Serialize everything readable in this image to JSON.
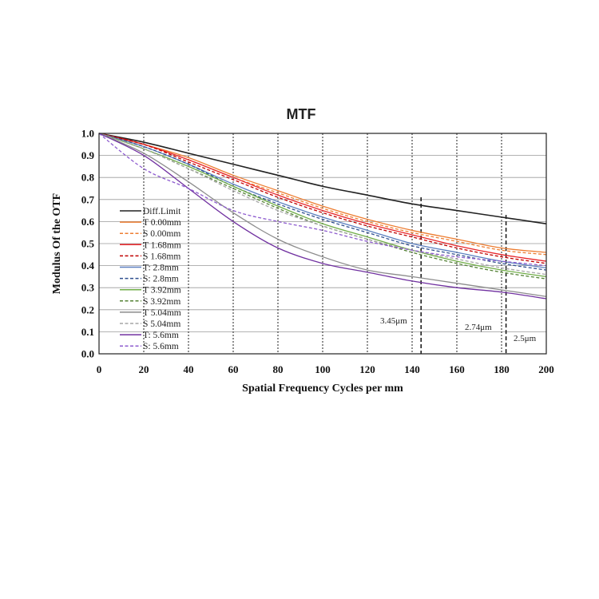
{
  "chart_data": {
    "type": "line",
    "title": "MTF",
    "xlabel": "Spatial Frequency Cycles per mm",
    "ylabel": "Modulus Of  the OTF",
    "xlim": [
      0,
      200
    ],
    "ylim": [
      0,
      1
    ],
    "xticks": [
      0,
      20,
      40,
      60,
      80,
      100,
      120,
      140,
      160,
      180,
      200
    ],
    "xtick_labels": [
      "0",
      "20",
      "40",
      "60",
      "80",
      "100",
      "120",
      "140",
      "160",
      "180",
      "200"
    ],
    "yticks": [
      0,
      0.1,
      0.2,
      0.3,
      0.4,
      0.5,
      0.6,
      0.7,
      0.8,
      0.9,
      1.0
    ],
    "ytick_labels": [
      "0.0",
      "0.1",
      "0.2",
      "0.3",
      "0.4",
      "0.5",
      "0.6",
      "0.7",
      "0.8",
      "0.9",
      "1.0"
    ],
    "grid": "horizontal solid, vertical dotted",
    "legend_position": "left",
    "x": [
      0,
      20,
      40,
      60,
      80,
      100,
      120,
      140,
      160,
      180,
      200
    ],
    "series": [
      {
        "name": "Diff.Limit",
        "color": "#222222",
        "dash": "solid",
        "values": [
          1.0,
          0.96,
          0.91,
          0.86,
          0.81,
          0.76,
          0.72,
          0.68,
          0.65,
          0.62,
          0.59
        ]
      },
      {
        "name": "T 0.00mm",
        "color": "#ed7d31",
        "dash": "solid",
        "values": [
          1.0,
          0.95,
          0.89,
          0.81,
          0.74,
          0.67,
          0.61,
          0.56,
          0.52,
          0.48,
          0.46
        ]
      },
      {
        "name": "S 0.00mm",
        "color": "#ed7d31",
        "dash": "dashed",
        "values": [
          1.0,
          0.95,
          0.88,
          0.8,
          0.73,
          0.66,
          0.6,
          0.55,
          0.51,
          0.47,
          0.45
        ]
      },
      {
        "name": "T 1.68mm",
        "color": "#e8262b",
        "dash": "solid",
        "values": [
          1.0,
          0.95,
          0.88,
          0.8,
          0.72,
          0.65,
          0.59,
          0.54,
          0.49,
          0.45,
          0.42
        ]
      },
      {
        "name": "S 1.68mm",
        "color": "#c00000",
        "dash": "dashed",
        "values": [
          1.0,
          0.95,
          0.87,
          0.79,
          0.71,
          0.64,
          0.58,
          0.53,
          0.48,
          0.44,
          0.41
        ]
      },
      {
        "name": "T: 2.8mm",
        "color": "#5b7fbf",
        "dash": "solid",
        "values": [
          1.0,
          0.94,
          0.86,
          0.77,
          0.69,
          0.62,
          0.56,
          0.5,
          0.46,
          0.42,
          0.39
        ]
      },
      {
        "name": "S: 2.8mm",
        "color": "#2f4f8f",
        "dash": "dashed",
        "values": [
          1.0,
          0.94,
          0.86,
          0.76,
          0.68,
          0.61,
          0.55,
          0.49,
          0.45,
          0.41,
          0.38
        ]
      },
      {
        "name": "T 3.92mm",
        "color": "#70ad47",
        "dash": "solid",
        "values": [
          1.0,
          0.93,
          0.85,
          0.76,
          0.67,
          0.59,
          0.53,
          0.47,
          0.42,
          0.38,
          0.35
        ]
      },
      {
        "name": "S 3.92mm",
        "color": "#548235",
        "dash": "dashed",
        "values": [
          1.0,
          0.93,
          0.84,
          0.75,
          0.66,
          0.58,
          0.52,
          0.46,
          0.41,
          0.37,
          0.34
        ]
      },
      {
        "name": "T 5.04mm",
        "color": "#8c8c8c",
        "dash": "solid",
        "values": [
          1.0,
          0.91,
          0.78,
          0.64,
          0.52,
          0.44,
          0.38,
          0.35,
          0.32,
          0.29,
          0.26
        ]
      },
      {
        "name": "S 5.04mm",
        "color": "#a6a6a6",
        "dash": "dashed",
        "values": [
          1.0,
          0.93,
          0.84,
          0.74,
          0.65,
          0.58,
          0.52,
          0.47,
          0.43,
          0.39,
          0.36
        ]
      },
      {
        "name": "T: 5.6mm",
        "color": "#7030a0",
        "dash": "solid",
        "values": [
          1.0,
          0.9,
          0.75,
          0.6,
          0.48,
          0.41,
          0.37,
          0.33,
          0.3,
          0.28,
          0.25
        ]
      },
      {
        "name": "S: 5.6mm",
        "color": "#8e5ccf",
        "dash": "dashed",
        "values": [
          1.0,
          0.84,
          0.75,
          0.65,
          0.6,
          0.56,
          0.51,
          0.47,
          0.44,
          0.42,
          0.4
        ]
      }
    ],
    "annotations": [
      {
        "text": "3.45μm",
        "x": 144
      },
      {
        "text": "2.74μm",
        "x": 182
      },
      {
        "text": "2.5μm",
        "x": 200
      }
    ]
  }
}
